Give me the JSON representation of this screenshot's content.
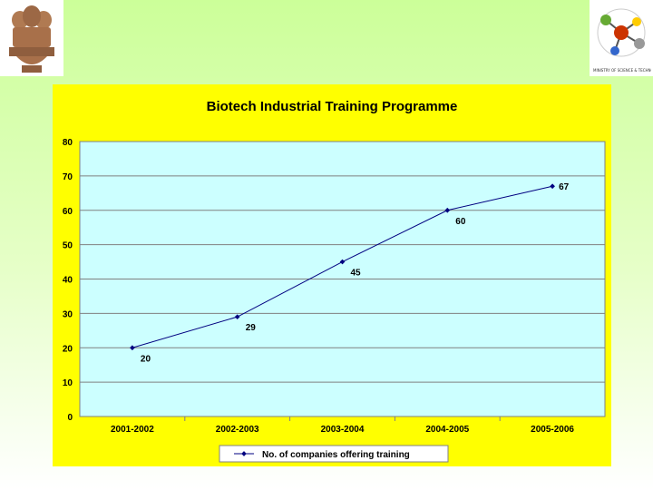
{
  "logos": {
    "left": "state-emblem",
    "right_caption": "MINISTRY OF SCIENCE & TECHNOLOGY"
  },
  "colors": {
    "background": "#ccff99",
    "chart_area": "#ffff00",
    "plot_area": "#ccffff",
    "series_line": "#000080"
  },
  "chart_data": {
    "type": "line",
    "title": "Biotech Industrial Training Programme",
    "xlabel": "",
    "ylabel": "",
    "categories": [
      "2001-2002",
      "2002-2003",
      "2003-2004",
      "2004-2005",
      "2005-2006"
    ],
    "series": [
      {
        "name": "No. of companies offering training",
        "values": [
          20,
          29,
          45,
          60,
          67
        ]
      }
    ],
    "yticks": [
      "0",
      "10",
      "20",
      "30",
      "40",
      "50",
      "60",
      "70",
      "80"
    ],
    "ylim": [
      0,
      80
    ],
    "grid": true,
    "legend_position": "bottom",
    "data_labels": [
      "20",
      "29",
      "45",
      "60",
      "67"
    ]
  }
}
